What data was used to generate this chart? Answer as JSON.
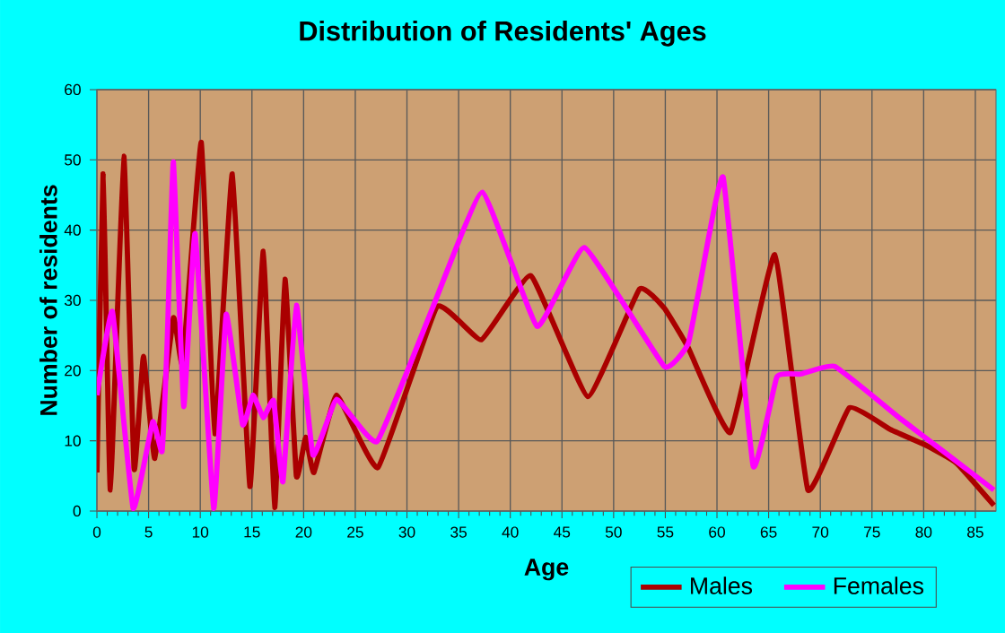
{
  "chart_data": {
    "type": "line",
    "title": "Distribution of Residents' Ages",
    "xlabel": "Age",
    "ylabel": "Number of residents",
    "xlim": [
      0,
      87
    ],
    "xticks": [
      0,
      5,
      10,
      15,
      20,
      25,
      30,
      35,
      40,
      45,
      50,
      55,
      60,
      65,
      70,
      75,
      80,
      85
    ],
    "ylim": [
      0,
      60
    ],
    "yticks": [
      0,
      10,
      20,
      30,
      40,
      50,
      60
    ],
    "grid": true,
    "legend": "bottom right",
    "line_style": "solid",
    "marker": "none",
    "series": [
      {
        "name": "Males",
        "color": "#aa0000",
        "x": [
          0,
          0.6,
          1.3,
          2.6,
          3.6,
          4.5,
          5.6,
          7.4,
          8.3,
          10.1,
          11.4,
          13.1,
          14.8,
          16.1,
          17.2,
          18.2,
          19.3,
          20.2,
          21,
          23.2,
          27.2,
          32.9,
          37.2,
          42,
          47.5,
          52.5,
          54.9,
          57.2,
          61.3,
          65.6,
          68.8,
          72.8,
          76.8,
          80.3,
          83.2,
          86.8
        ],
        "values": [
          5.5,
          48,
          3,
          50.5,
          6,
          22,
          7.5,
          27.5,
          21,
          52.5,
          11,
          48,
          3.5,
          37,
          0.5,
          33,
          5,
          10.5,
          5.5,
          16.5,
          6.2,
          29.1,
          24.4,
          33.5,
          16.3,
          31.6,
          28.9,
          23.3,
          11.2,
          36.5,
          3,
          14.7,
          11.6,
          9.3,
          6.8,
          0.8
        ]
      },
      {
        "name": "Females",
        "color": "#ff00ff",
        "x": [
          0,
          1.5,
          3.5,
          5.4,
          6.3,
          6.8,
          7.4,
          8.4,
          9.5,
          11.3,
          12.5,
          14.1,
          15.1,
          16.1,
          17.1,
          18,
          19.3,
          20.9,
          23.2,
          27.1,
          32.5,
          37.3,
          42.6,
          47.2,
          54.9,
          57.2,
          58.3,
          60.6,
          63.5,
          65.8,
          68.1,
          71.4,
          77.8,
          81.9,
          86.8
        ],
        "values": [
          16.5,
          28.4,
          0.4,
          12.7,
          8.5,
          24,
          49.7,
          14.9,
          39.5,
          0.4,
          28,
          12.3,
          16.5,
          13.3,
          15.7,
          4.2,
          29.3,
          8,
          15.9,
          9.9,
          29,
          45.4,
          26.3,
          37.5,
          20.6,
          23.8,
          31.8,
          47.5,
          6.4,
          19.1,
          19.5,
          20.6,
          13.1,
          8.5,
          3
        ]
      }
    ]
  }
}
